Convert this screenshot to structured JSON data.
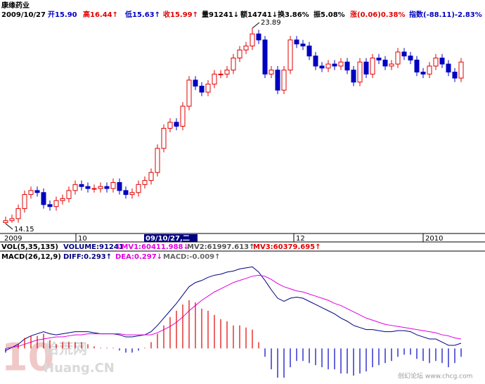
{
  "header": {
    "name": "康缘药业",
    "date": "2009/10/27",
    "open": "开15.90",
    "high": "高16.44↑",
    "low": "低15.63↑",
    "close": "收15.99↑",
    "volume": "量91241↓",
    "amount": "额14741↓",
    "turnover": "换3.86%",
    "amplitude": "振5.08%",
    "change": "涨(0.06)0.38%",
    "index": "指数(-88.11)-2.83%",
    "vol_title": "VOL(5,35,135)",
    "vol_value": "VOLUME:91241",
    "mv1": "↓MV1:60411.988↓",
    "mv2": "MV2:61997.613↑",
    "mv3": "MV3:60379.695↑",
    "macd_title": "MACD(26,12,9)",
    "diff": "DIFF:0.293↑",
    "dea": "DEA:0.297↓",
    "macd": "MACD:-0.009↑",
    "time_labels": [
      "2009",
      "10",
      "12",
      "2010"
    ],
    "cursor": "09/10/27,二",
    "watermark": [
      "10",
      "拾荒网",
      "Huang.CN",
      "创幻论坛 www.chcg.com"
    ]
  },
  "chart_data": [
    {
      "type": "candlestick",
      "up_color": "#e00000",
      "down_color": "#0000c0",
      "ylim": [
        13.73,
        25.29
      ],
      "annotations": [
        {
          "text": "23.89",
          "index": 39
        },
        {
          "text": "14.15",
          "index": 0
        }
      ],
      "open": [
        14.2,
        14.3,
        14.4,
        14.9,
        15.6,
        15.8,
        15.7,
        15.1,
        15.0,
        15.3,
        15.4,
        15.8,
        16.1,
        16.0,
        15.9,
        15.9,
        16.0,
        15.9,
        16.2,
        15.8,
        15.6,
        15.7,
        16.1,
        16.3,
        16.7,
        17.9,
        18.9,
        19.2,
        19.0,
        20.0,
        21.3,
        21.0,
        20.7,
        21.1,
        21.6,
        21.6,
        21.8,
        22.4,
        22.8,
        23.0,
        23.6,
        23.3,
        21.6,
        21.8,
        20.8,
        21.8,
        23.3,
        23.1,
        23.0,
        22.5,
        22.0,
        21.9,
        22.1,
        22.0,
        22.2,
        21.8,
        21.2,
        22.2,
        21.6,
        22.4,
        22.3,
        22.0,
        22.1,
        22.7,
        22.5,
        22.3,
        21.7,
        21.6,
        22.0,
        22.4,
        22.1,
        21.7,
        21.4
      ],
      "close": [
        14.3,
        14.4,
        14.9,
        15.6,
        15.8,
        15.7,
        15.1,
        15.0,
        15.3,
        15.4,
        15.8,
        16.1,
        16.0,
        15.9,
        15.9,
        16.0,
        15.9,
        16.2,
        15.8,
        15.6,
        15.7,
        16.1,
        16.3,
        16.7,
        17.9,
        18.9,
        19.2,
        19.0,
        20.0,
        21.3,
        21.0,
        20.7,
        21.1,
        21.6,
        21.6,
        21.8,
        22.4,
        22.8,
        23.0,
        23.6,
        23.3,
        21.6,
        21.8,
        20.8,
        21.8,
        23.3,
        23.1,
        23.0,
        22.5,
        22.0,
        21.9,
        22.1,
        22.0,
        22.2,
        21.8,
        21.2,
        22.2,
        21.6,
        22.4,
        22.3,
        22.0,
        22.1,
        22.7,
        22.5,
        22.3,
        21.7,
        21.6,
        22.0,
        22.4,
        22.1,
        21.7,
        21.4,
        22.2
      ],
      "high": [
        14.5,
        14.6,
        15.1,
        15.8,
        16.0,
        16.0,
        15.9,
        15.3,
        15.5,
        15.6,
        16.0,
        16.3,
        16.3,
        16.2,
        16.1,
        16.2,
        16.2,
        16.4,
        16.4,
        16.0,
        15.9,
        16.3,
        16.5,
        16.9,
        18.1,
        19.1,
        19.4,
        19.4,
        20.2,
        21.5,
        21.5,
        21.2,
        21.3,
        21.8,
        21.8,
        22.0,
        22.6,
        23.0,
        23.2,
        23.89,
        23.8,
        23.5,
        22.0,
        22.0,
        22.0,
        23.5,
        23.5,
        23.3,
        23.2,
        22.7,
        22.2,
        22.3,
        22.3,
        22.4,
        22.4,
        22.0,
        22.4,
        22.4,
        22.6,
        22.6,
        22.5,
        22.3,
        22.9,
        22.9,
        22.7,
        22.5,
        21.9,
        22.2,
        22.6,
        22.6,
        22.3,
        21.9,
        22.4
      ],
      "low": [
        14.15,
        14.2,
        14.2,
        14.7,
        15.4,
        15.5,
        14.9,
        14.8,
        14.8,
        15.1,
        15.2,
        15.6,
        15.8,
        15.7,
        15.7,
        15.7,
        15.7,
        15.7,
        15.6,
        15.4,
        15.4,
        15.5,
        15.9,
        16.1,
        16.5,
        17.7,
        18.7,
        18.8,
        18.8,
        19.8,
        20.8,
        20.5,
        20.5,
        20.9,
        21.4,
        21.4,
        21.6,
        22.2,
        22.6,
        22.8,
        23.1,
        21.4,
        21.4,
        20.6,
        20.6,
        21.6,
        22.9,
        22.8,
        22.3,
        21.8,
        21.7,
        21.7,
        21.8,
        21.8,
        21.6,
        21.0,
        21.0,
        21.4,
        21.4,
        22.1,
        21.8,
        21.8,
        21.9,
        22.3,
        22.1,
        21.5,
        21.4,
        21.4,
        21.8,
        21.9,
        21.5,
        21.2,
        21.2
      ]
    },
    {
      "type": "macd",
      "ylim": [
        -0.3,
        0.83
      ],
      "series": [
        {
          "name": "DIFF",
          "color": "#000080",
          "values": [
            -0.02,
            0.01,
            0.04,
            0.09,
            0.12,
            0.14,
            0.16,
            0.14,
            0.13,
            0.14,
            0.15,
            0.16,
            0.16,
            0.16,
            0.15,
            0.14,
            0.14,
            0.14,
            0.13,
            0.11,
            0.11,
            0.12,
            0.13,
            0.16,
            0.22,
            0.29,
            0.36,
            0.43,
            0.51,
            0.59,
            0.63,
            0.65,
            0.68,
            0.7,
            0.71,
            0.73,
            0.74,
            0.76,
            0.77,
            0.78,
            0.73,
            0.65,
            0.56,
            0.48,
            0.45,
            0.48,
            0.49,
            0.48,
            0.45,
            0.42,
            0.39,
            0.36,
            0.33,
            0.29,
            0.26,
            0.22,
            0.2,
            0.18,
            0.18,
            0.17,
            0.16,
            0.16,
            0.17,
            0.17,
            0.16,
            0.13,
            0.11,
            0.09,
            0.09,
            0.06,
            0.03,
            0.03,
            0.05
          ]
        },
        {
          "name": "DEA",
          "color": "#e000e0",
          "values": [
            0.0,
            0.01,
            0.02,
            0.04,
            0.06,
            0.08,
            0.09,
            0.1,
            0.11,
            0.11,
            0.12,
            0.13,
            0.13,
            0.14,
            0.14,
            0.14,
            0.14,
            0.14,
            0.14,
            0.13,
            0.13,
            0.13,
            0.13,
            0.13,
            0.15,
            0.18,
            0.21,
            0.25,
            0.3,
            0.36,
            0.41,
            0.46,
            0.5,
            0.54,
            0.57,
            0.6,
            0.63,
            0.65,
            0.67,
            0.69,
            0.7,
            0.69,
            0.66,
            0.62,
            0.59,
            0.57,
            0.55,
            0.54,
            0.52,
            0.5,
            0.48,
            0.46,
            0.43,
            0.41,
            0.38,
            0.35,
            0.32,
            0.29,
            0.27,
            0.25,
            0.23,
            0.22,
            0.21,
            0.2,
            0.19,
            0.18,
            0.17,
            0.16,
            0.15,
            0.13,
            0.12,
            0.1,
            0.09
          ]
        },
        {
          "name": "MACD",
          "up_color": "#e00000",
          "down_color": "#0000c0",
          "values": [
            -0.04,
            0,
            0.04,
            0.1,
            0.12,
            0.12,
            0.14,
            0.08,
            0.04,
            0.06,
            0.06,
            0.06,
            0.06,
            0.04,
            0.02,
            0,
            0,
            0,
            -0.02,
            -0.04,
            -0.04,
            -0.02,
            0,
            0.06,
            0.14,
            0.22,
            0.3,
            0.36,
            0.42,
            0.46,
            0.44,
            0.38,
            0.36,
            0.32,
            0.28,
            0.26,
            0.22,
            0.22,
            0.2,
            0.18,
            0.06,
            -0.08,
            -0.2,
            -0.28,
            -0.28,
            -0.18,
            -0.12,
            -0.12,
            -0.14,
            -0.16,
            -0.18,
            -0.2,
            -0.2,
            -0.24,
            -0.24,
            -0.26,
            -0.24,
            -0.22,
            -0.18,
            -0.16,
            -0.14,
            -0.12,
            -0.08,
            -0.06,
            -0.06,
            -0.1,
            -0.12,
            -0.14,
            -0.12,
            -0.14,
            -0.18,
            -0.14,
            -0.08
          ]
        }
      ]
    }
  ]
}
